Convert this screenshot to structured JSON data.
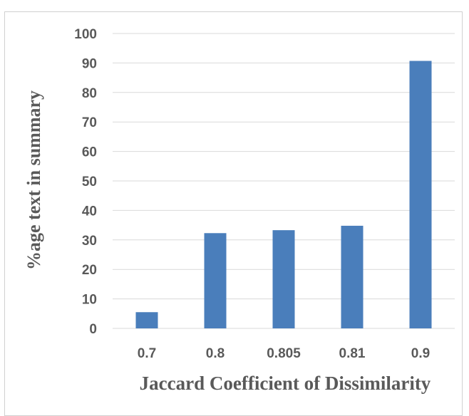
{
  "chart_data": {
    "type": "bar",
    "title": "",
    "xlabel": "Jaccard Coefficient of Dissimilarity",
    "ylabel": "%age text in summary",
    "categories": [
      "0.7",
      "0.8",
      "0.805",
      "0.81",
      "0.9"
    ],
    "values": [
      5.5,
      32.3,
      33.3,
      34.8,
      90.7
    ],
    "ylim": [
      0,
      100
    ],
    "yticks": [
      "0",
      "10",
      "20",
      "30",
      "40",
      "50",
      "60",
      "70",
      "80",
      "90",
      "100"
    ],
    "grid": true,
    "legend": "none",
    "bar_color": "#4a7ebb"
  }
}
